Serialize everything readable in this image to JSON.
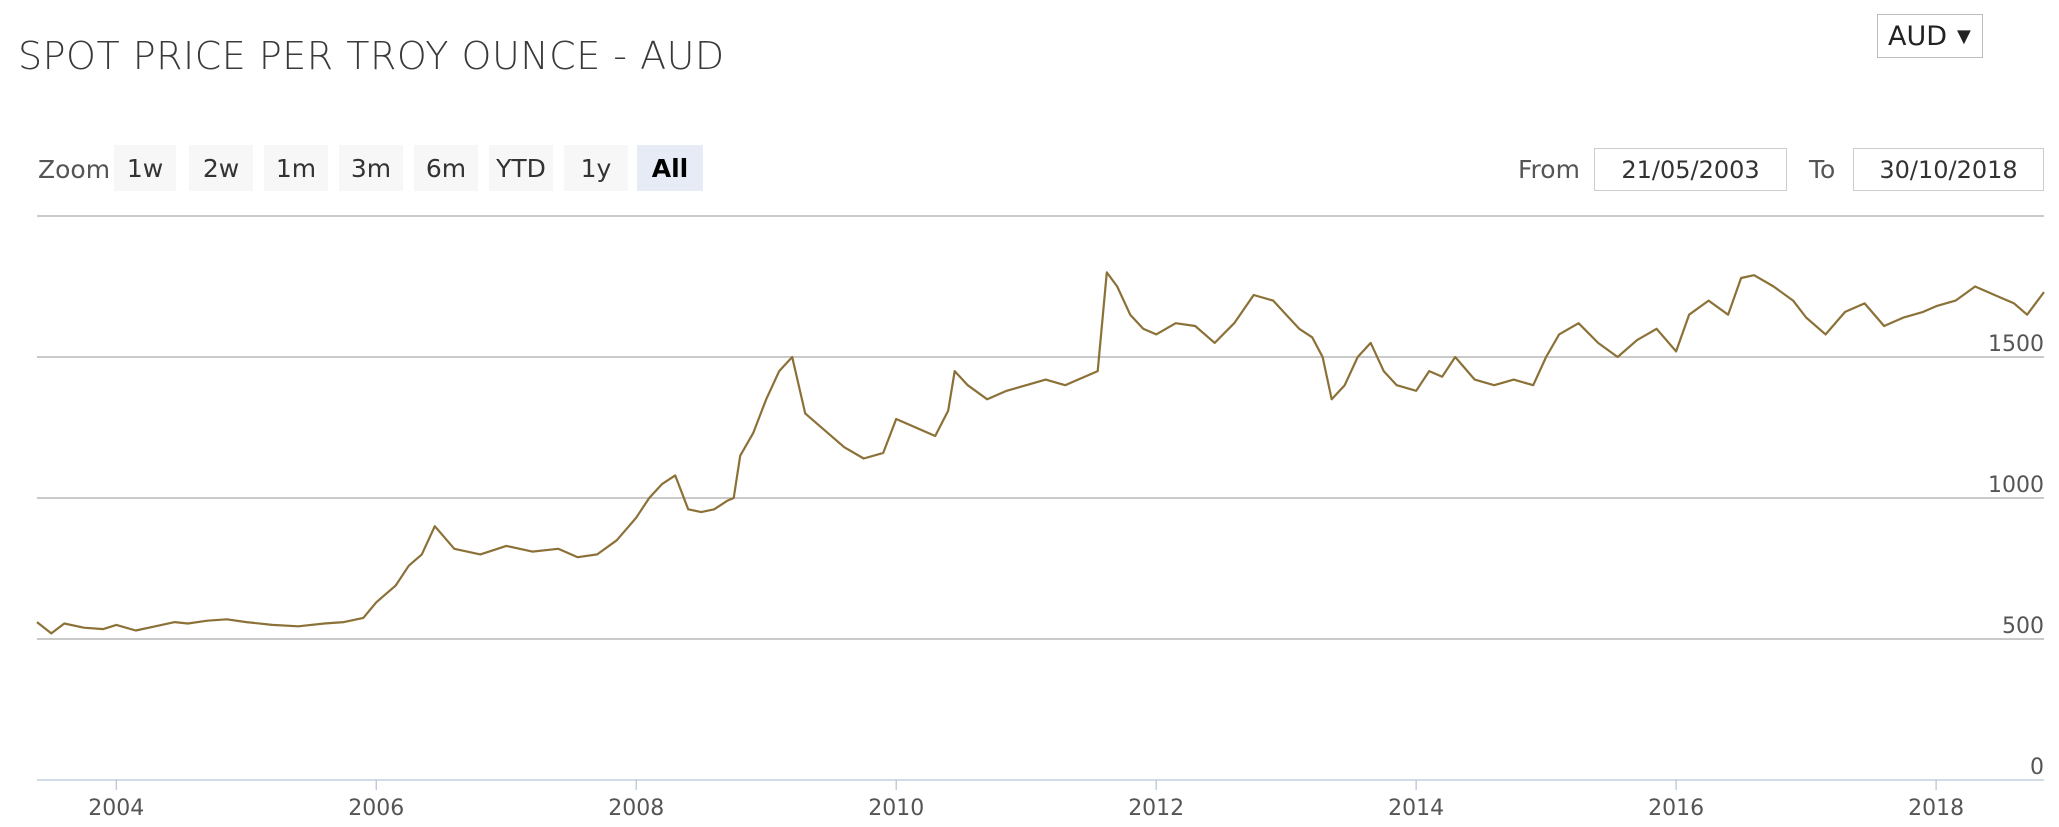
{
  "title": "SPOT PRICE PER TROY OUNCE - AUD",
  "currency_select": {
    "value": "AUD",
    "arrow": "▼"
  },
  "zoom": {
    "label": "Zoom",
    "buttons": [
      "1w",
      "2w",
      "1m",
      "3m",
      "6m",
      "YTD",
      "1y",
      "All"
    ],
    "active": "All"
  },
  "range": {
    "from_label": "From",
    "from_value": "21/05/2003",
    "to_label": "To",
    "to_value": "30/10/2018"
  },
  "colors": {
    "line": "#8b7137",
    "grid": "#aaaaaa",
    "axis": "#b8c6d8",
    "tick_text": "#555555"
  },
  "chart_data": {
    "type": "line",
    "title": "SPOT PRICE PER TROY OUNCE - AUD",
    "xlabel": "",
    "ylabel": "",
    "xlim": [
      2003.39,
      2018.83
    ],
    "ylim": [
      0,
      2000
    ],
    "y_ticks": [
      0,
      500,
      1000,
      1500
    ],
    "x_ticks": [
      2004,
      2006,
      2008,
      2010,
      2012,
      2014,
      2016,
      2018
    ],
    "grid": true,
    "legend": "none",
    "series": [
      {
        "x": [
          2003.39,
          2003.5,
          2003.6,
          2003.75,
          2003.9,
          2004.0,
          2004.15,
          2004.3,
          2004.45,
          2004.55,
          2004.7,
          2004.85,
          2005.0,
          2005.2,
          2005.4,
          2005.6,
          2005.75,
          2005.9,
          2006.0,
          2006.15,
          2006.25,
          2006.35,
          2006.45,
          2006.6,
          2006.8,
          2007.0,
          2007.2,
          2007.4,
          2007.55,
          2007.7,
          2007.85,
          2008.0,
          2008.1,
          2008.2,
          2008.3,
          2008.4,
          2008.5,
          2008.6,
          2008.7,
          2008.75,
          2008.8,
          2008.9,
          2009.0,
          2009.1,
          2009.2,
          2009.3,
          2009.45,
          2009.6,
          2009.75,
          2009.9,
          2010.0,
          2010.15,
          2010.3,
          2010.4,
          2010.45,
          2010.55,
          2010.7,
          2010.85,
          2011.0,
          2011.15,
          2011.3,
          2011.45,
          2011.55,
          2011.62,
          2011.7,
          2011.8,
          2011.9,
          2012.0,
          2012.15,
          2012.3,
          2012.45,
          2012.6,
          2012.75,
          2012.9,
          2013.0,
          2013.1,
          2013.2,
          2013.28,
          2013.35,
          2013.45,
          2013.55,
          2013.65,
          2013.75,
          2013.85,
          2014.0,
          2014.1,
          2014.2,
          2014.3,
          2014.45,
          2014.6,
          2014.75,
          2014.9,
          2015.0,
          2015.1,
          2015.25,
          2015.4,
          2015.55,
          2015.7,
          2015.85,
          2016.0,
          2016.1,
          2016.25,
          2016.4,
          2016.5,
          2016.6,
          2016.75,
          2016.9,
          2017.0,
          2017.15,
          2017.3,
          2017.45,
          2017.6,
          2017.75,
          2017.9,
          2018.0,
          2018.15,
          2018.3,
          2018.45,
          2018.6,
          2018.7,
          2018.83
        ],
        "y": [
          560,
          520,
          555,
          540,
          535,
          550,
          530,
          545,
          560,
          555,
          565,
          570,
          560,
          550,
          545,
          555,
          560,
          575,
          630,
          690,
          760,
          800,
          900,
          820,
          800,
          830,
          810,
          820,
          790,
          800,
          850,
          930,
          1000,
          1050,
          1080,
          960,
          950,
          960,
          990,
          1000,
          1150,
          1230,
          1350,
          1450,
          1500,
          1300,
          1240,
          1180,
          1140,
          1160,
          1280,
          1250,
          1220,
          1310,
          1450,
          1400,
          1350,
          1380,
          1400,
          1420,
          1400,
          1430,
          1450,
          1800,
          1750,
          1650,
          1600,
          1580,
          1620,
          1610,
          1550,
          1620,
          1720,
          1700,
          1650,
          1600,
          1570,
          1500,
          1350,
          1400,
          1500,
          1550,
          1450,
          1400,
          1380,
          1450,
          1430,
          1500,
          1420,
          1400,
          1420,
          1400,
          1500,
          1580,
          1620,
          1550,
          1500,
          1560,
          1600,
          1520,
          1650,
          1700,
          1650,
          1780,
          1790,
          1750,
          1700,
          1640,
          1580,
          1660,
          1690,
          1610,
          1640,
          1660,
          1680,
          1700,
          1750,
          1720,
          1690,
          1650,
          1730
        ]
      }
    ]
  }
}
